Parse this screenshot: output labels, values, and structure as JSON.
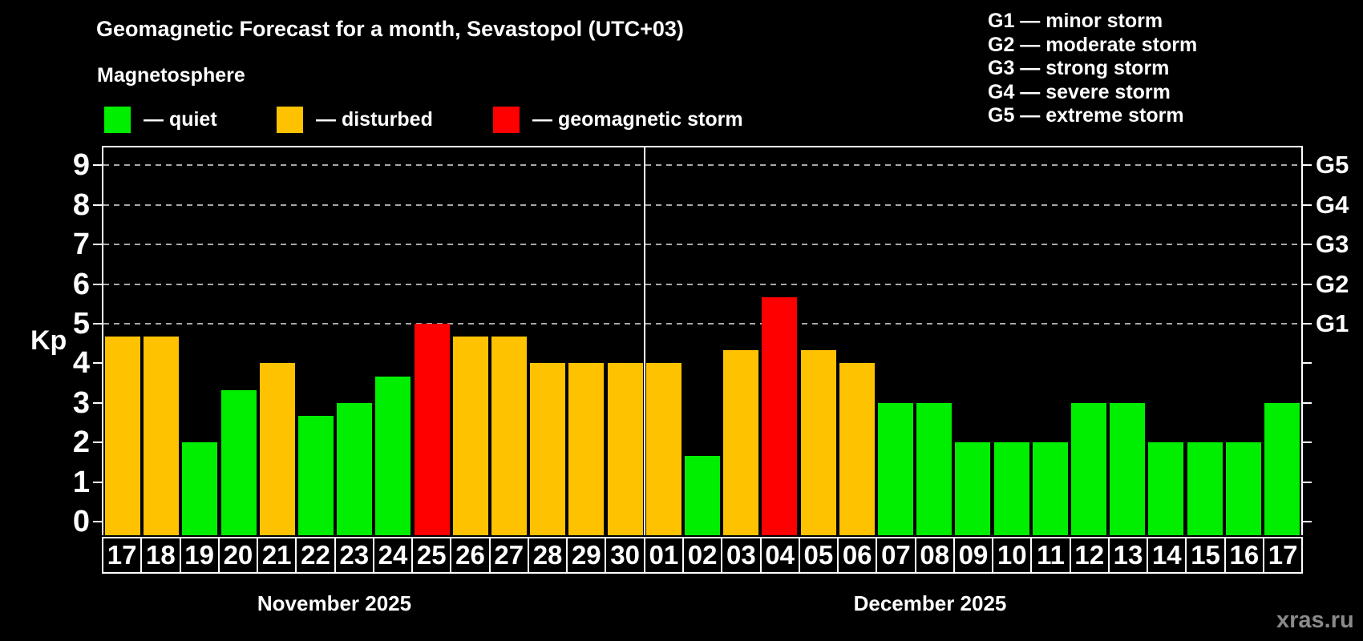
{
  "title": "Geomagnetic Forecast for a month, Sevastopol (UTC+03)",
  "subtitle": "Magnetosphere",
  "axis": {
    "ylabel": "Kp"
  },
  "legend": {
    "items": [
      {
        "key": "quiet",
        "label": "— quiet"
      },
      {
        "key": "disturbed",
        "label": "— disturbed"
      },
      {
        "key": "storm",
        "label": "— geomagnetic storm"
      }
    ]
  },
  "g_scale_legend": {
    "lines": [
      "G1 — minor storm",
      "G2 — moderate storm",
      "G3 — strong storm",
      "G4 — severe storm",
      "G5 — extreme storm"
    ]
  },
  "months": [
    {
      "label": "November 2025"
    },
    {
      "label": "December 2025"
    }
  ],
  "watermark": "xras.ru",
  "colors": {
    "quiet": "#00ee00",
    "disturbed": "#ffc200",
    "storm": "#fe0000",
    "background": "#000000",
    "grid": "#a8a8a8",
    "frame": "#ffffff",
    "watermark_text": "#8a8a8a"
  },
  "chart_data": {
    "type": "bar",
    "title": "Geomagnetic Forecast for a month, Sevastopol (UTC+03)",
    "subtitle": "Magnetosphere",
    "ylabel": "Kp",
    "ylim": [
      0,
      9.35
    ],
    "yticks": [
      0,
      1,
      2,
      3,
      4,
      5,
      6,
      7,
      8,
      9
    ],
    "dashed_gridlines_at": [
      5,
      6,
      7,
      8,
      9
    ],
    "right_axis_labels": [
      {
        "value": 5,
        "label": "G1"
      },
      {
        "value": 6,
        "label": "G2"
      },
      {
        "value": 7,
        "label": "G3"
      },
      {
        "value": 8,
        "label": "G4"
      },
      {
        "value": 9,
        "label": "G5"
      }
    ],
    "legend_position": "top",
    "grid": "dashed-horizontal-above-kp5",
    "divider_after_index": 13,
    "bars": [
      {
        "month": "November 2025",
        "day": "17",
        "kp": 4.67,
        "status": "disturbed"
      },
      {
        "month": "November 2025",
        "day": "18",
        "kp": 4.67,
        "status": "disturbed"
      },
      {
        "month": "November 2025",
        "day": "19",
        "kp": 2.0,
        "status": "quiet"
      },
      {
        "month": "November 2025",
        "day": "20",
        "kp": 3.33,
        "status": "quiet"
      },
      {
        "month": "November 2025",
        "day": "21",
        "kp": 4.0,
        "status": "disturbed"
      },
      {
        "month": "November 2025",
        "day": "22",
        "kp": 2.67,
        "status": "quiet"
      },
      {
        "month": "November 2025",
        "day": "23",
        "kp": 3.0,
        "status": "quiet"
      },
      {
        "month": "November 2025",
        "day": "24",
        "kp": 3.67,
        "status": "quiet"
      },
      {
        "month": "November 2025",
        "day": "25",
        "kp": 5.0,
        "status": "storm"
      },
      {
        "month": "November 2025",
        "day": "26",
        "kp": 4.67,
        "status": "disturbed"
      },
      {
        "month": "November 2025",
        "day": "27",
        "kp": 4.67,
        "status": "disturbed"
      },
      {
        "month": "November 2025",
        "day": "28",
        "kp": 4.0,
        "status": "disturbed"
      },
      {
        "month": "November 2025",
        "day": "29",
        "kp": 4.0,
        "status": "disturbed"
      },
      {
        "month": "November 2025",
        "day": "30",
        "kp": 4.0,
        "status": "disturbed"
      },
      {
        "month": "December 2025",
        "day": "01",
        "kp": 4.0,
        "status": "disturbed"
      },
      {
        "month": "December 2025",
        "day": "02",
        "kp": 1.67,
        "status": "quiet"
      },
      {
        "month": "December 2025",
        "day": "03",
        "kp": 4.33,
        "status": "disturbed"
      },
      {
        "month": "December 2025",
        "day": "04",
        "kp": 5.67,
        "status": "storm"
      },
      {
        "month": "December 2025",
        "day": "05",
        "kp": 4.33,
        "status": "disturbed"
      },
      {
        "month": "December 2025",
        "day": "06",
        "kp": 4.0,
        "status": "disturbed"
      },
      {
        "month": "December 2025",
        "day": "07",
        "kp": 3.0,
        "status": "quiet"
      },
      {
        "month": "December 2025",
        "day": "08",
        "kp": 3.0,
        "status": "quiet"
      },
      {
        "month": "December 2025",
        "day": "09",
        "kp": 2.0,
        "status": "quiet"
      },
      {
        "month": "December 2025",
        "day": "10",
        "kp": 2.0,
        "status": "quiet"
      },
      {
        "month": "December 2025",
        "day": "11",
        "kp": 2.0,
        "status": "quiet"
      },
      {
        "month": "December 2025",
        "day": "12",
        "kp": 3.0,
        "status": "quiet"
      },
      {
        "month": "December 2025",
        "day": "13",
        "kp": 3.0,
        "status": "quiet"
      },
      {
        "month": "December 2025",
        "day": "14",
        "kp": 2.0,
        "status": "quiet"
      },
      {
        "month": "December 2025",
        "day": "15",
        "kp": 2.0,
        "status": "quiet"
      },
      {
        "month": "December 2025",
        "day": "16",
        "kp": 2.0,
        "status": "quiet"
      },
      {
        "month": "December 2025",
        "day": "17",
        "kp": 3.0,
        "status": "quiet"
      }
    ]
  }
}
